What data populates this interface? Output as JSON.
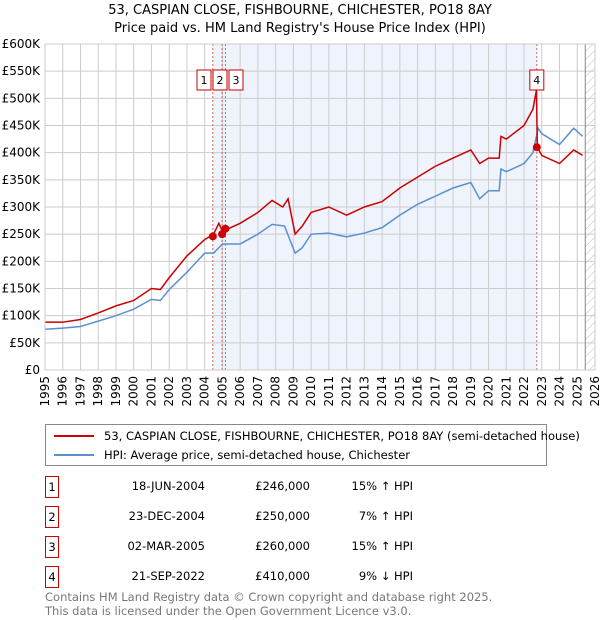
{
  "chart_data": {
    "type": "line",
    "title": "53, CASPIAN CLOSE, FISHBOURNE, CHICHESTER, PO18 8AY",
    "subtitle": "Price paid vs. HM Land Registry's House Price Index (HPI)",
    "xlim": [
      1995,
      2026
    ],
    "ylim": [
      0,
      600000
    ],
    "x_ticks": [
      "1995",
      "1996",
      "1997",
      "1998",
      "1999",
      "2000",
      "2001",
      "2002",
      "2003",
      "2004",
      "2005",
      "2006",
      "2007",
      "2008",
      "2009",
      "2010",
      "2011",
      "2012",
      "2013",
      "2014",
      "2015",
      "2016",
      "2017",
      "2018",
      "2019",
      "2020",
      "2021",
      "2022",
      "2023",
      "2024",
      "2025",
      "2026"
    ],
    "y_ticks": [
      {
        "v": 0,
        "label": "£0"
      },
      {
        "v": 50000,
        "label": "£50K"
      },
      {
        "v": 100000,
        "label": "£100K"
      },
      {
        "v": 150000,
        "label": "£150K"
      },
      {
        "v": 200000,
        "label": "£200K"
      },
      {
        "v": 250000,
        "label": "£250K"
      },
      {
        "v": 300000,
        "label": "£300K"
      },
      {
        "v": 350000,
        "label": "£350K"
      },
      {
        "v": 400000,
        "label": "£400K"
      },
      {
        "v": 450000,
        "label": "£450K"
      },
      {
        "v": 500000,
        "label": "£500K"
      },
      {
        "v": 550000,
        "label": "£550K"
      },
      {
        "v": 600000,
        "label": "£600K"
      }
    ],
    "grid": true,
    "shaded_range": [
      2004.46,
      2022.72
    ],
    "hatched_from": 2025.45,
    "series": [
      {
        "name": "53, CASPIAN CLOSE, FISHBOURNE, CHICHESTER, PO18 8AY (semi-detached house)",
        "color": "#cc0000",
        "x": [
          1995,
          1996,
          1997,
          1998,
          1999,
          2000,
          2001,
          2001.5,
          2002,
          2003,
          2004,
          2004.5,
          2004.8,
          2005,
          2006,
          2007,
          2007.8,
          2008.4,
          2008.7,
          2009.1,
          2009.5,
          2010,
          2011,
          2012,
          2013,
          2014,
          2015,
          2016,
          2017,
          2018,
          2019,
          2019.5,
          2020,
          2020.6,
          2020.7,
          2021,
          2022,
          2022.5,
          2022.7,
          2022.75,
          2023,
          2024,
          2024.8,
          2025.3
        ],
        "y": [
          88000,
          88000,
          93000,
          105000,
          118000,
          128000,
          150000,
          148000,
          170000,
          210000,
          240000,
          250000,
          270000,
          255000,
          270000,
          290000,
          312000,
          300000,
          315000,
          250000,
          265000,
          290000,
          300000,
          285000,
          300000,
          310000,
          335000,
          355000,
          375000,
          390000,
          405000,
          380000,
          390000,
          390000,
          430000,
          425000,
          450000,
          480000,
          515000,
          410000,
          395000,
          380000,
          405000,
          395000
        ]
      },
      {
        "name": "HPI: Average price, semi-detached house, Chichester",
        "color": "#5b8fd0",
        "x": [
          1995,
          1996,
          1997,
          1998,
          1999,
          2000,
          2001,
          2001.5,
          2002,
          2003,
          2004,
          2004.5,
          2005,
          2006,
          2007,
          2007.8,
          2008.5,
          2009.1,
          2009.5,
          2010,
          2011,
          2012,
          2013,
          2014,
          2015,
          2016,
          2017,
          2018,
          2019,
          2019.5,
          2020,
          2020.6,
          2020.7,
          2021,
          2022,
          2022.5,
          2022.8,
          2023,
          2024,
          2024.8,
          2025.3
        ],
        "y": [
          75000,
          77000,
          80000,
          90000,
          100000,
          112000,
          130000,
          128000,
          148000,
          180000,
          215000,
          215000,
          232000,
          232000,
          250000,
          268000,
          265000,
          215000,
          225000,
          250000,
          252000,
          245000,
          252000,
          262000,
          285000,
          305000,
          320000,
          335000,
          345000,
          315000,
          330000,
          330000,
          370000,
          365000,
          380000,
          400000,
          445000,
          435000,
          415000,
          445000,
          430000
        ]
      }
    ],
    "sales": [
      {
        "id": "1",
        "x": 2004.46,
        "price": 246000,
        "date": "18-JUN-2004",
        "price_label": "£246,000",
        "hpi": "15% ↑ HPI"
      },
      {
        "id": "2",
        "x": 2004.98,
        "price": 250000,
        "date": "23-DEC-2004",
        "price_label": "£250,000",
        "hpi": "7% ↑ HPI"
      },
      {
        "id": "3",
        "x": 2005.17,
        "price": 260000,
        "date": "02-MAR-2005",
        "price_label": "£260,000",
        "hpi": "15% ↑ HPI"
      },
      {
        "id": "4",
        "x": 2022.72,
        "price": 410000,
        "date": "21-SEP-2022",
        "price_label": "£410,000",
        "hpi": "9% ↓ HPI"
      }
    ]
  },
  "footer": {
    "line1": "Contains HM Land Registry data © Crown copyright and database right 2025.",
    "line2": "This data is licensed under the Open Government Licence v3.0."
  }
}
